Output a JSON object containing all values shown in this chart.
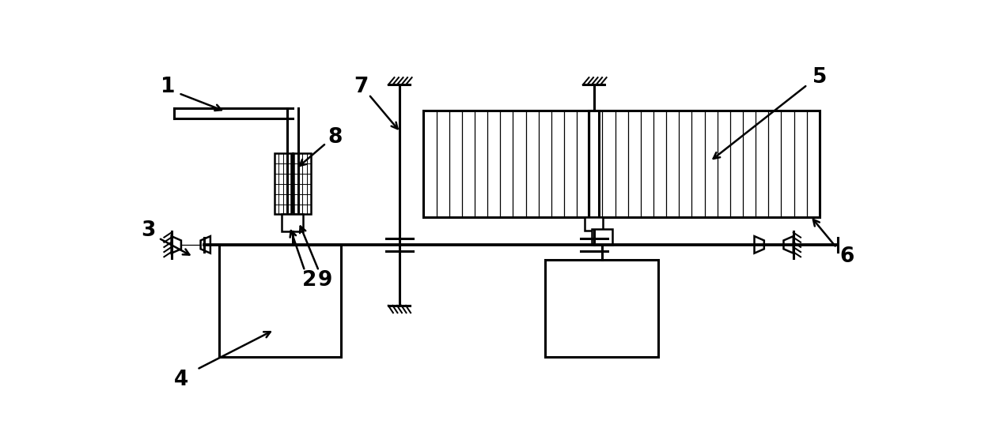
{
  "bg_color": "#ffffff",
  "lc": "#000000",
  "lw": 1.8,
  "lw2": 2.2,
  "fig_width": 12.4,
  "fig_height": 5.61,
  "dpi": 100
}
